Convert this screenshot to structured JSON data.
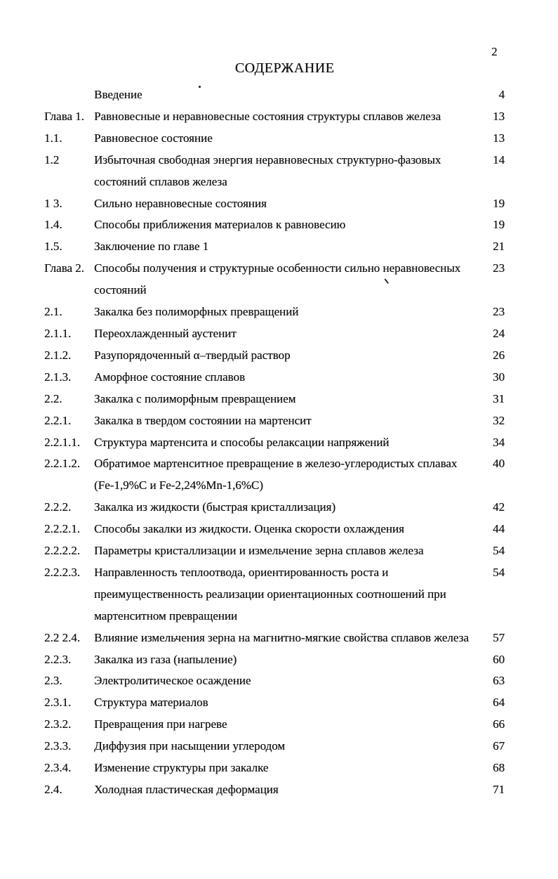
{
  "page": {
    "page_number": "2",
    "title": "СОДЕРЖАНИЕ"
  },
  "toc": {
    "entries": [
      {
        "num": "",
        "lines": [
          "Введение"
        ],
        "page": "4"
      },
      {
        "num": "Глава 1.",
        "lines": [
          "Равновесные и неравновесные состояния структуры сплавов железа"
        ],
        "page": "13"
      },
      {
        "num": "1.1.",
        "lines": [
          "Равновесное состояние"
        ],
        "page": "13"
      },
      {
        "num": "1.2",
        "lines": [
          "Избыточная свободная энергия неравновесных структурно-фазовых",
          "состояний сплавов железа"
        ],
        "page": "14"
      },
      {
        "num": "1 3.",
        "lines": [
          "Сильно неравновесные состояния"
        ],
        "page": "19"
      },
      {
        "num": "1.4.",
        "lines": [
          "Способы приближения материалов к равновесию"
        ],
        "page": "19"
      },
      {
        "num": "1.5.",
        "lines": [
          "Заключение по главе 1"
        ],
        "page": "21"
      },
      {
        "num": "Глава 2.",
        "lines": [
          "Способы получения и структурные особенности сильно неравновесных",
          "состояний"
        ],
        "page": "23"
      },
      {
        "num": "2.1.",
        "lines": [
          "Закалка без полиморфных превращений"
        ],
        "page": "23"
      },
      {
        "num": "2.1.1.",
        "lines": [
          "Переохлажденный аустенит"
        ],
        "page": "24"
      },
      {
        "num": "2.1.2.",
        "lines": [
          "Разупорядоченный α–твердый раствор"
        ],
        "page": "26"
      },
      {
        "num": "2.1.3.",
        "lines": [
          "Аморфное состояние сплавов"
        ],
        "page": "30"
      },
      {
        "num": "2.2.",
        "lines": [
          "Закалка с полиморфным превращением"
        ],
        "page": "31"
      },
      {
        "num": "2.2.1.",
        "lines": [
          "Закалка в твердом состоянии на мартенсит"
        ],
        "page": "32"
      },
      {
        "num": "2.2.1.1.",
        "lines": [
          "Структура мартенсита и способы релаксации напряжений"
        ],
        "page": "34"
      },
      {
        "num": "2.2.1.2.",
        "lines": [
          "Обратимое мартенситное превращение в железо-углеродистых сплавах",
          "(Fe-1,9%C и Fe-2,24%Mn-1,6%C)"
        ],
        "page": "40"
      },
      {
        "num": "2.2.2.",
        "lines": [
          "Закалка из жидкости (быстрая кристаллизация)"
        ],
        "page": "42"
      },
      {
        "num": "2.2.2.1.",
        "lines": [
          "Способы закалки из жидкости. Оценка скорости охлаждения"
        ],
        "page": "44"
      },
      {
        "num": "2.2.2.2.",
        "lines": [
          "Параметры кристаллизации и измельчение зерна сплавов железа"
        ],
        "page": "54"
      },
      {
        "num": "2.2.2.3.",
        "lines": [
          "Направленность теплоотвода, ориентированность роста и",
          "преимущественность реализации ориентационных соотношений при",
          "мартенситном превращении"
        ],
        "page": "54"
      },
      {
        "num": "2.2 2.4.",
        "lines": [
          "Влияние измельчения зерна на магнитно-мягкие свойства сплавов железа"
        ],
        "page": "57"
      },
      {
        "num": "2.2.3.",
        "lines": [
          "Закалка из газа (напыление)"
        ],
        "page": "60"
      },
      {
        "num": "2.3.",
        "lines": [
          "Электролитическое осаждение"
        ],
        "page": "63"
      },
      {
        "num": "2.3.1.",
        "lines": [
          "Структура материалов"
        ],
        "page": "64"
      },
      {
        "num": "2.3.2.",
        "lines": [
          "Превращения при нагреве"
        ],
        "page": "66"
      },
      {
        "num": "2.3.3.",
        "lines": [
          "Диффузия при насыщении углеродом"
        ],
        "page": "67"
      },
      {
        "num": "2.3.4.",
        "lines": [
          "Изменение структуры при закалке"
        ],
        "page": "68"
      },
      {
        "num": "2.4.",
        "lines": [
          "Холодная пластическая деформация"
        ],
        "page": "71"
      }
    ]
  },
  "colors": {
    "ink": "#161616",
    "paper": "#ffffff"
  }
}
